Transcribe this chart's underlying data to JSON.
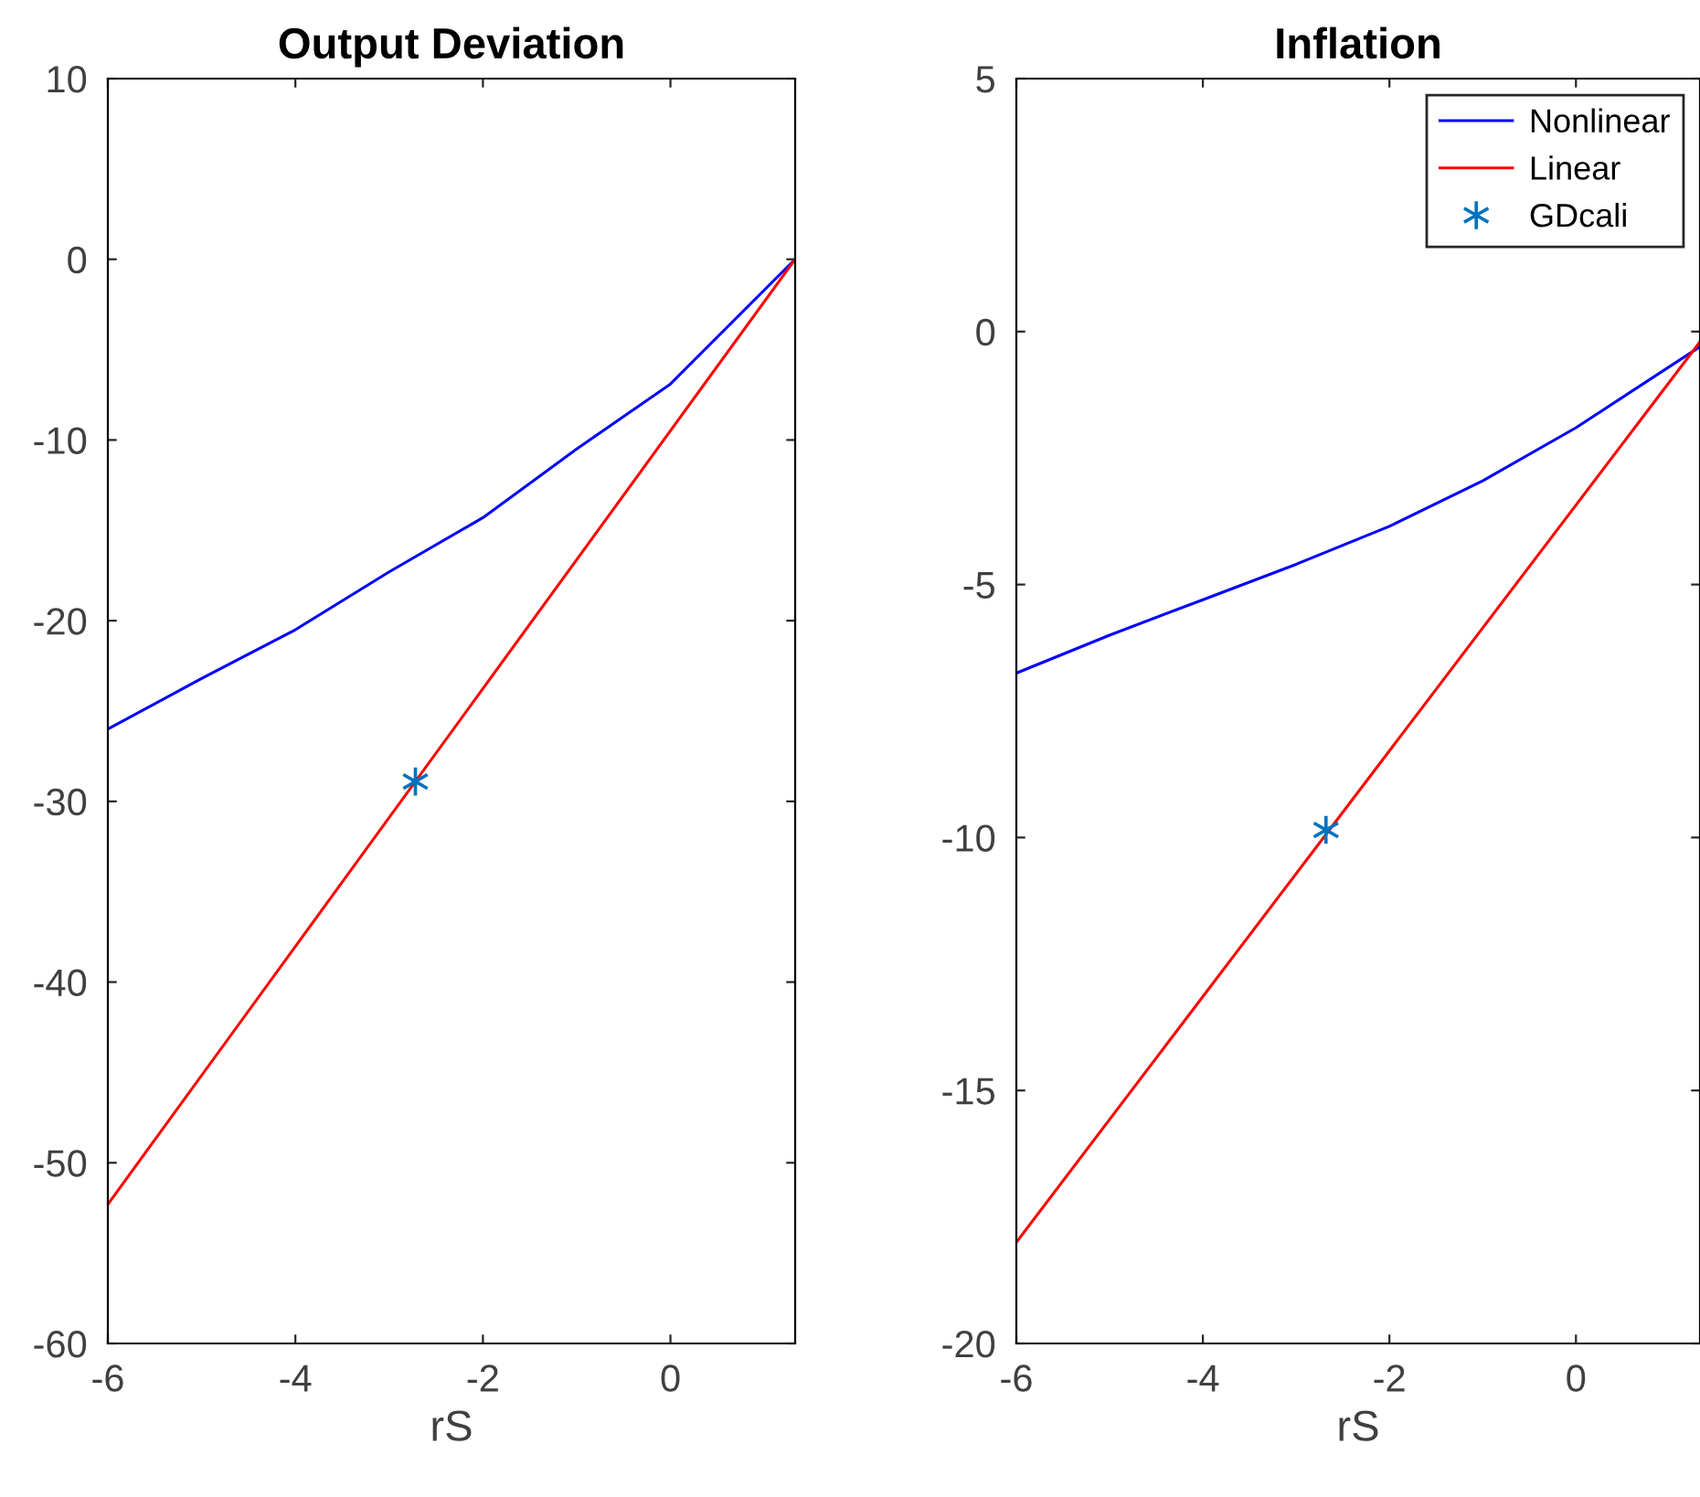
{
  "chart_data": [
    {
      "type": "line",
      "title": "Output Deviation",
      "xlabel": "rS",
      "xlim": [
        -6,
        1.33
      ],
      "xticks": [
        -6,
        -4,
        -2,
        0
      ],
      "ylim": [
        -60,
        10
      ],
      "yticks": [
        -60,
        -50,
        -40,
        -30,
        -20,
        -10,
        0,
        10
      ],
      "grid": false,
      "legend": false,
      "series": [
        {
          "color": "#0000ff",
          "x": [
            -6,
            -5,
            -4,
            -3,
            -2,
            -1,
            0,
            1.33
          ],
          "values": [
            -26,
            -23.2,
            -20.5,
            -17.3,
            -14.3,
            -10.5,
            -6.9,
            0
          ]
        },
        {
          "color": "#ff0000",
          "x": [
            -6,
            1.33
          ],
          "values": [
            -52.3,
            0
          ]
        },
        {
          "type": "scatter",
          "marker": "cross",
          "color": "#0072bd",
          "x": [
            -2.72
          ],
          "values": [
            -28.9
          ]
        }
      ]
    },
    {
      "type": "line",
      "title": "Inflation",
      "xlabel": "rS",
      "xlim": [
        -6,
        1.33
      ],
      "xticks": [
        -6,
        -4,
        -2,
        0
      ],
      "ylim": [
        -20,
        5
      ],
      "yticks": [
        -20,
        -15,
        -10,
        -5,
        0,
        5
      ],
      "grid": false,
      "legend": "top right",
      "series": [
        {
          "name": "Nonlinear",
          "color": "#0000ff",
          "x": [
            -6,
            -5,
            -4,
            -3,
            -2,
            -1,
            0,
            1.33
          ],
          "values": [
            -6.75,
            -6.0,
            -5.3,
            -4.6,
            -3.85,
            -2.95,
            -1.9,
            -0.3
          ]
        },
        {
          "name": "Linear",
          "color": "#ff0000",
          "x": [
            -6,
            1.33
          ],
          "values": [
            -18,
            -0.2
          ]
        },
        {
          "name": "GDcali",
          "type": "scatter",
          "marker": "cross",
          "color": "#0072bd",
          "x": [
            -2.68
          ],
          "values": [
            -9.85
          ]
        }
      ]
    }
  ]
}
